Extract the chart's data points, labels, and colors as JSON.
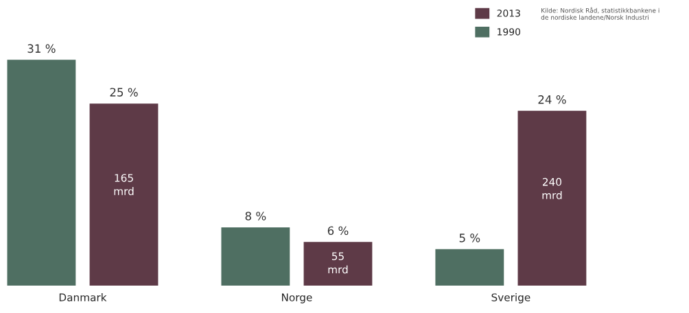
{
  "chart_data": {
    "type": "bar",
    "categories": [
      "Danmark",
      "Norge",
      "Sverige"
    ],
    "series": [
      {
        "name": "1990",
        "color": "#4f6f62",
        "values": [
          31,
          8,
          5
        ],
        "value_labels": [
          "31 %",
          "8 %",
          "5 %"
        ]
      },
      {
        "name": "2013",
        "color": "#5e3a47",
        "values": [
          25,
          6,
          24
        ],
        "value_labels": [
          "25 %",
          "6 %",
          "24 %"
        ]
      }
    ],
    "annotations": [
      "Kilde: Nordisk Råd, statistikkbankene i\nde nordiske landene/Norsk Industri",
      "165\nmrd",
      "55\nmrd",
      "240\nmrd"
    ],
    "legend": "top right",
    "grid": false
  }
}
